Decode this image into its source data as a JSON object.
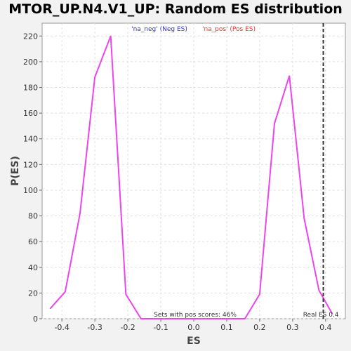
{
  "chart_data": {
    "type": "line",
    "title": "MTOR_UP.N4.V1_UP: Random ES distribution",
    "xlabel": "ES",
    "ylabel": "P(ES)",
    "xlim": [
      -0.46,
      0.46
    ],
    "ylim": [
      0,
      230
    ],
    "x_ticks": [
      -0.4,
      -0.3,
      -0.2,
      -0.1,
      0.0,
      0.1,
      0.2,
      0.3,
      0.4
    ],
    "x_tick_labels": [
      "-0.4",
      "-0.3",
      "-0.2",
      "-0.1",
      "0.0",
      "0.1",
      "0.2",
      "0.3",
      "0.4"
    ],
    "y_ticks": [
      0,
      20,
      40,
      60,
      80,
      100,
      120,
      140,
      160,
      180,
      200,
      220
    ],
    "y_tick_labels": [
      "0",
      "20",
      "40",
      "60",
      "80",
      "100",
      "120",
      "140",
      "160",
      "180",
      "200",
      "220"
    ],
    "grid": true,
    "legend": [
      {
        "label": "'na_neg' (Neg ES)",
        "color": "#3333cc"
      },
      {
        "label": "'na_pos' (Pos ES)",
        "color": "#ee3333"
      }
    ],
    "series": [
      {
        "color": "#ee44ee",
        "x": [
          -0.435,
          -0.39,
          -0.345,
          -0.3,
          -0.252,
          -0.206,
          -0.16,
          -0.115,
          -0.07,
          -0.025,
          0.02,
          0.065,
          0.11,
          0.155,
          0.2,
          0.245,
          0.29,
          0.335,
          0.38,
          0.42
        ],
        "y": [
          8,
          21,
          82,
          188,
          220,
          19,
          0,
          0,
          0,
          0,
          0,
          0,
          0,
          0,
          19,
          152,
          189,
          78,
          22,
          4
        ]
      }
    ],
    "reference_line": {
      "x": 0.393,
      "label": "Real ES 0.4",
      "color": "#333333"
    },
    "annotation": "Sets with pos scores: 46%"
  }
}
